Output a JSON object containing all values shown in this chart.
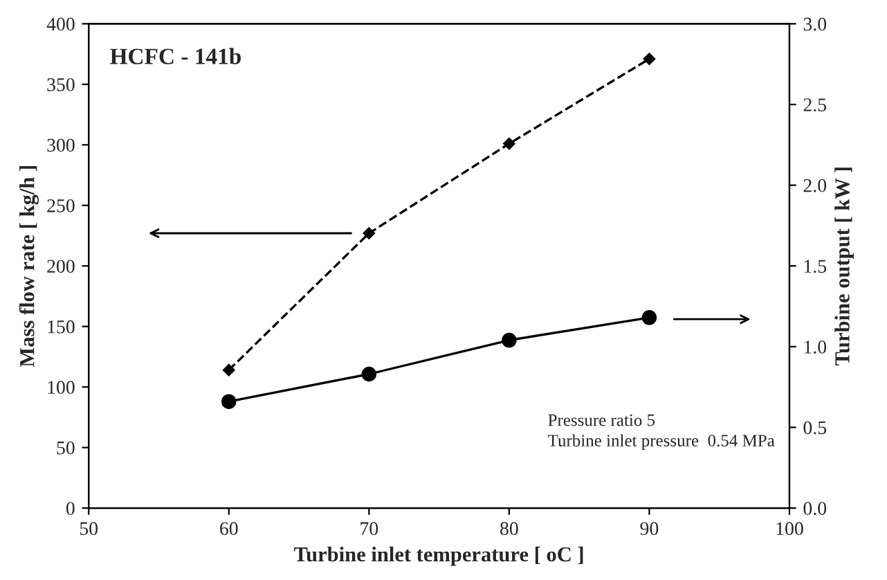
{
  "chart_data": {
    "type": "line",
    "xlabel": "Turbine inlet temperature [ oC ]",
    "ylabel": "Mass flow rate [ kg/h ]",
    "y2label": "Turbine output [ kW ]",
    "x": [
      60,
      70,
      80,
      90
    ],
    "series": [
      {
        "color": "#000000",
        "values": [
          114,
          227,
          301,
          371
        ],
        "marker": "diamond",
        "line_style": "dashed"
      },
      {
        "color": "#000000",
        "values": [
          0.66,
          0.83,
          1.04,
          1.18
        ],
        "marker": "circle",
        "line_style": "solid",
        "axis": "y2"
      }
    ],
    "xlim": [
      50,
      100
    ],
    "xticks": [
      50,
      60,
      70,
      80,
      90,
      100
    ],
    "ylim": [
      0,
      400
    ],
    "yticks": [
      0,
      50,
      100,
      150,
      200,
      250,
      300,
      350,
      400
    ],
    "y2lim": [
      0,
      3.0
    ],
    "y2ticks": [
      {
        "value": 0,
        "label": "0.0"
      },
      {
        "value": 0.5,
        "label": "0.5"
      },
      {
        "value": 1.0,
        "label": "1.0"
      },
      {
        "value": 1.5,
        "label": "1.5"
      },
      {
        "value": 2.0,
        "label": "2.0"
      },
      {
        "value": 2.5,
        "label": "2.5"
      },
      {
        "value": 3.0,
        "label": "3.0"
      }
    ],
    "grid": false,
    "annotations": [
      "HCFC - 141b",
      "Pressure ratio 5",
      "Turbine inlet pressure  0.54 MPa"
    ]
  }
}
